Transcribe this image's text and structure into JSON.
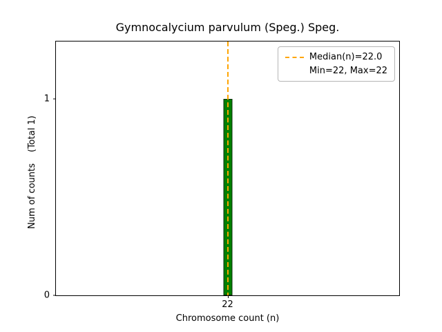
{
  "chart_data": {
    "type": "bar",
    "title": "Gymnocalycium parvulum (Speg.) Speg.",
    "xlabel": "Chromosome count (n)",
    "ylabel": "Num of counts",
    "total_label": "(Total 1)",
    "categories": [
      "22"
    ],
    "values": [
      1
    ],
    "ylim": [
      0,
      1.29
    ],
    "ytick_labels": [
      "0",
      "1"
    ],
    "xtick_labels": [
      "22"
    ],
    "grid": false,
    "bar_color": "#008000",
    "bar_edge_color": "#0b2e0b",
    "median_value": 22.0,
    "median_line_color": "#FFA500",
    "legend": {
      "position": "upper right",
      "entries": [
        {
          "label": "Median(n)=22.0",
          "handle": "dashed-line"
        },
        {
          "label": "Min=22, Max=22",
          "handle": "none"
        }
      ]
    }
  }
}
